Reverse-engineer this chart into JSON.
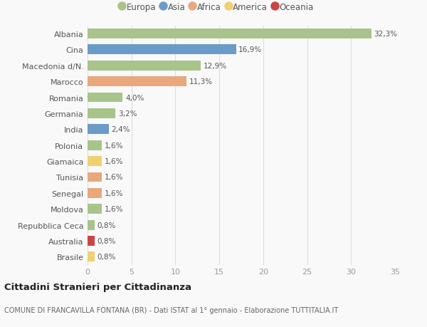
{
  "countries": [
    "Albania",
    "Cina",
    "Macedonia d/N.",
    "Marocco",
    "Romania",
    "Germania",
    "India",
    "Polonia",
    "Giamaica",
    "Tunisia",
    "Senegal",
    "Moldova",
    "Repubblica Ceca",
    "Australia",
    "Brasile"
  ],
  "values": [
    32.3,
    16.9,
    12.9,
    11.3,
    4.0,
    3.2,
    2.4,
    1.6,
    1.6,
    1.6,
    1.6,
    1.6,
    0.8,
    0.8,
    0.8
  ],
  "labels": [
    "32,3%",
    "16,9%",
    "12,9%",
    "11,3%",
    "4,0%",
    "3,2%",
    "2,4%",
    "1,6%",
    "1,6%",
    "1,6%",
    "1,6%",
    "1,6%",
    "0,8%",
    "0,8%",
    "0,8%"
  ],
  "continents": [
    "Europa",
    "Asia",
    "Europa",
    "Africa",
    "Europa",
    "Europa",
    "Asia",
    "Europa",
    "America",
    "Africa",
    "Africa",
    "Europa",
    "Europa",
    "Oceania",
    "America"
  ],
  "continent_colors": {
    "Europa": "#a8c48a",
    "Asia": "#6b9bc8",
    "Africa": "#e8a87c",
    "America": "#f0d070",
    "Oceania": "#cc4444"
  },
  "legend_order": [
    "Europa",
    "Asia",
    "Africa",
    "America",
    "Oceania"
  ],
  "title1": "Cittadini Stranieri per Cittadinanza",
  "title2": "COMUNE DI FRANCAVILLA FONTANA (BR) - Dati ISTAT al 1° gennaio - Elaborazione TUTTITALIA.IT",
  "xlim": [
    0,
    35
  ],
  "xticks": [
    0,
    5,
    10,
    15,
    20,
    25,
    30,
    35
  ],
  "bg_color": "#f9f9f9",
  "grid_color": "#dddddd"
}
